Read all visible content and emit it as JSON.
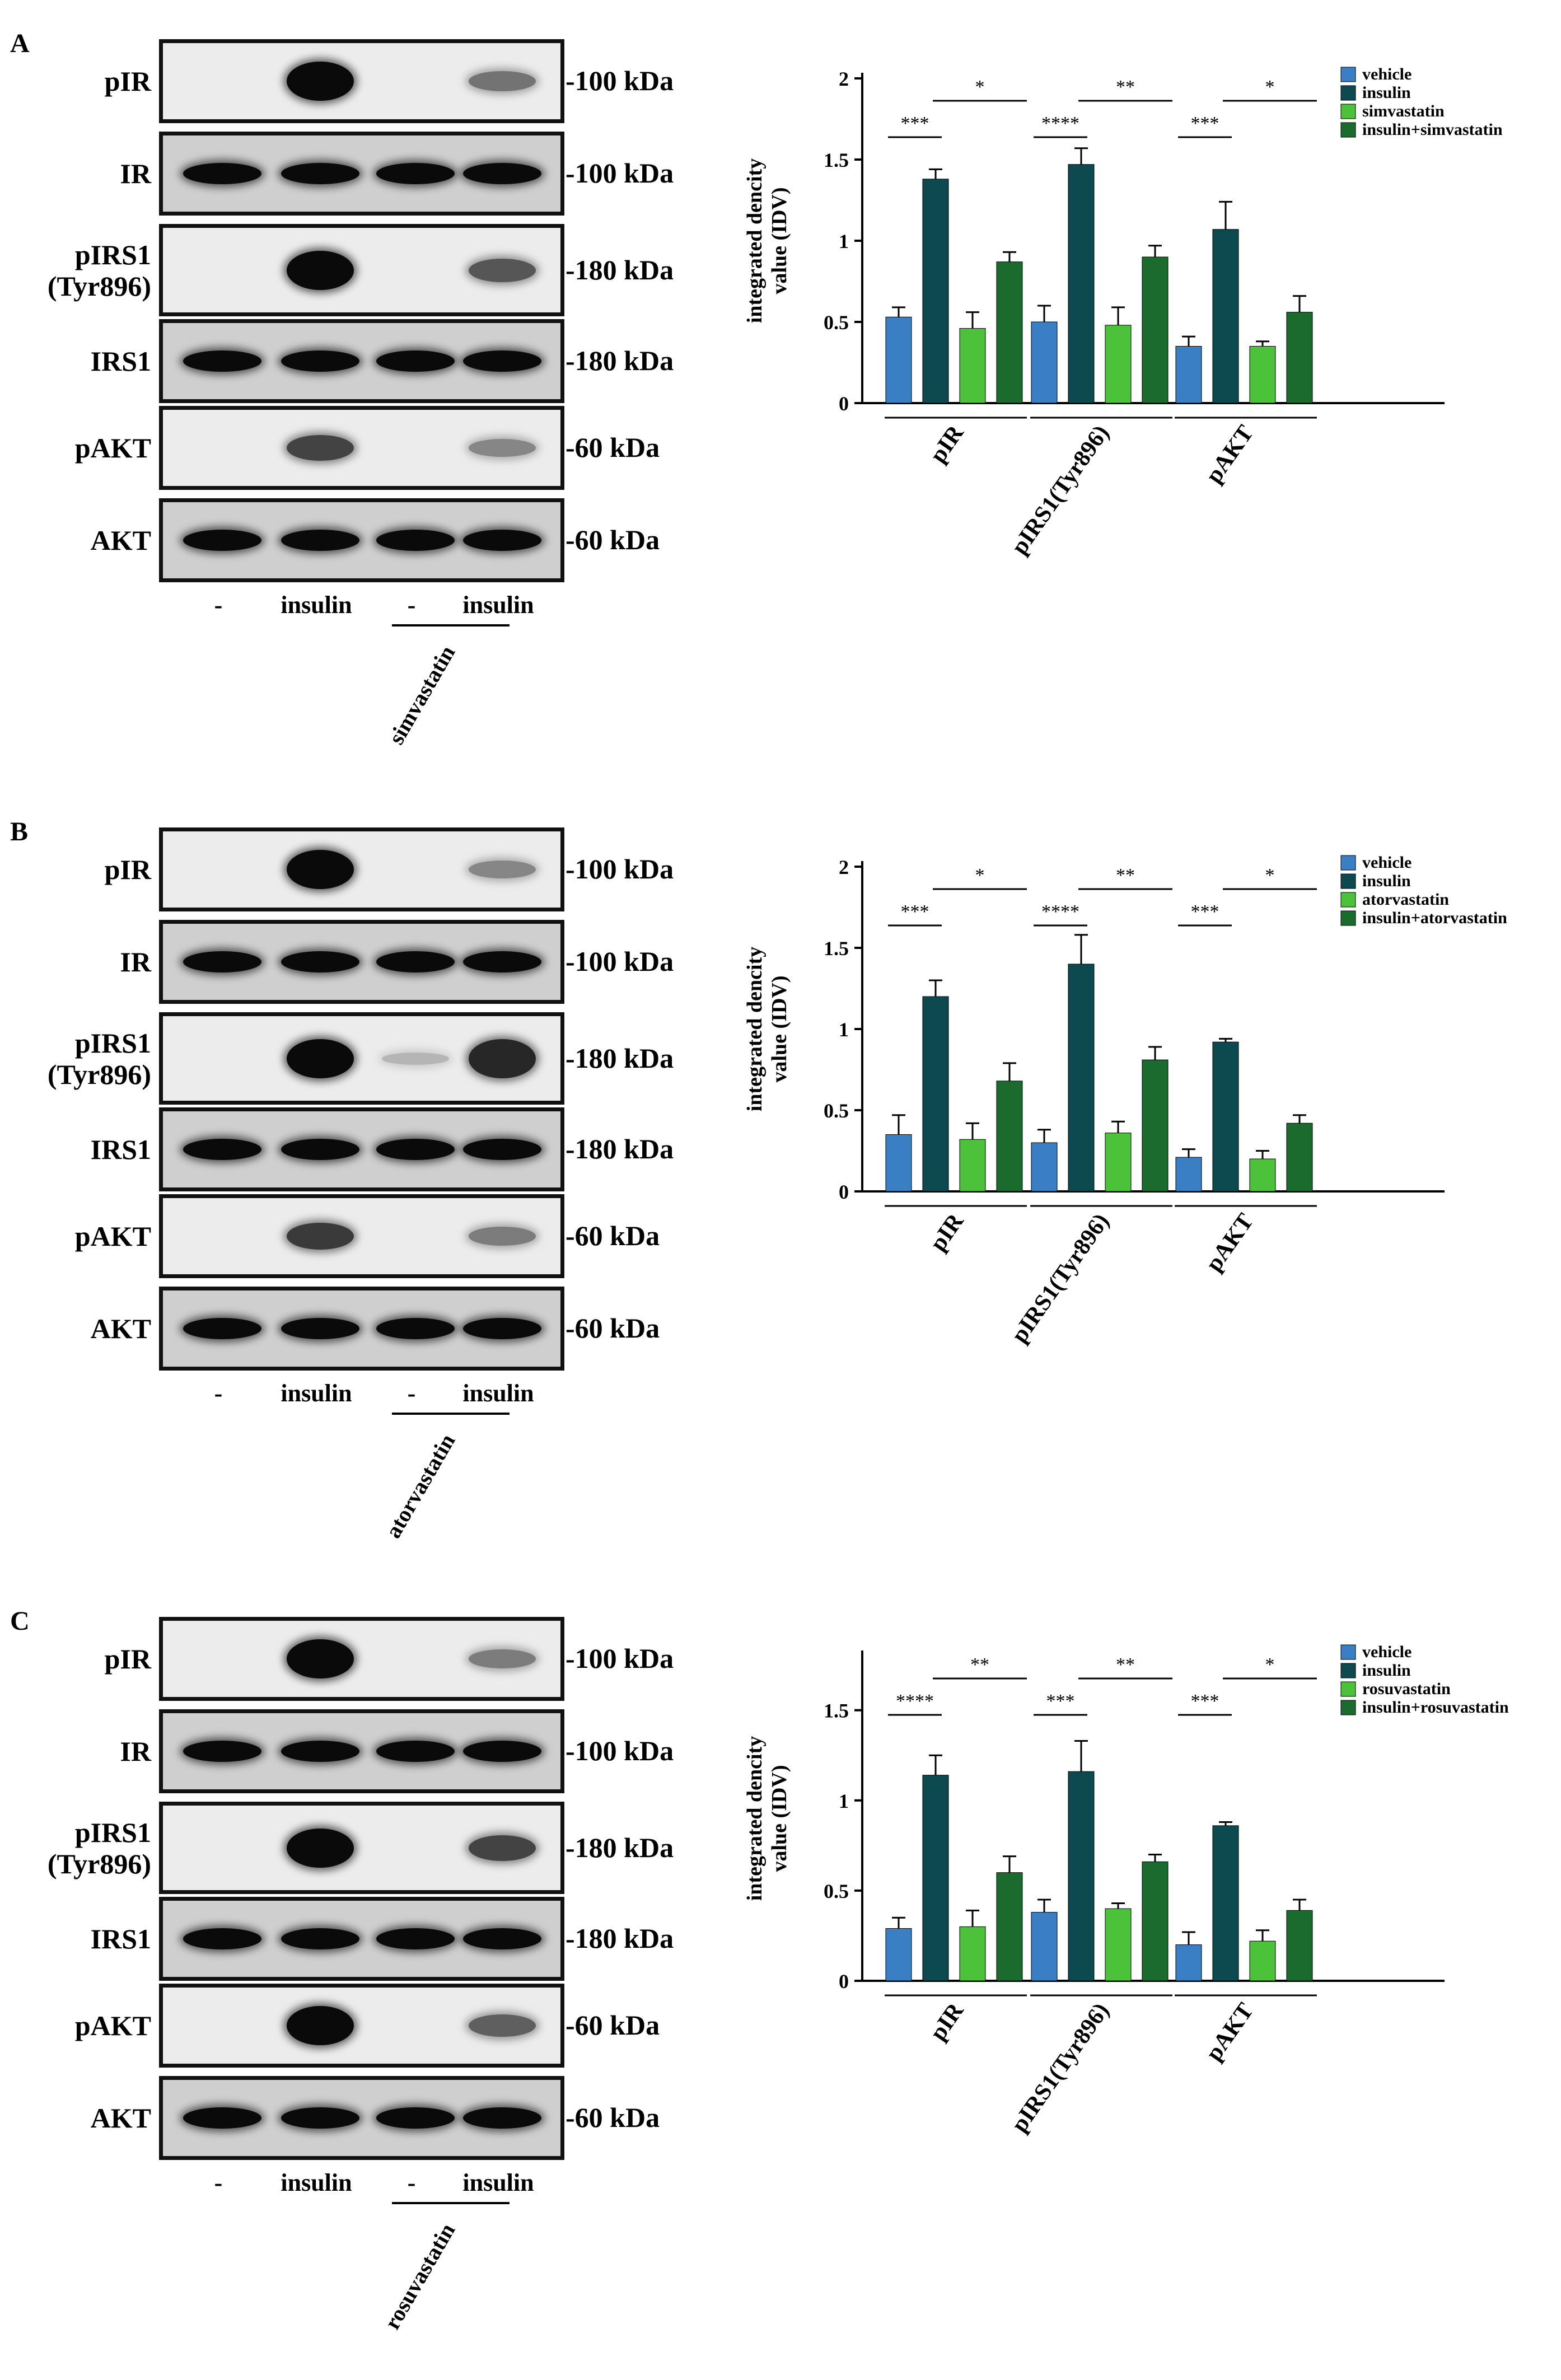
{
  "panels": [
    {
      "letter": "A",
      "drug": "simvastatin",
      "blots": [
        {
          "label": "pIR",
          "kda": "-100 kDa"
        },
        {
          "label": "IR",
          "kda": "-100 kDa"
        },
        {
          "label": "pIRS1\n(Tyr896)",
          "kda": "-180 kDa"
        },
        {
          "label": "IRS1",
          "kda": "-180 kDa"
        },
        {
          "label": "pAKT",
          "kda": "-60 kDa"
        },
        {
          "label": "AKT",
          "kda": "-60 kDa"
        }
      ],
      "lanes": [
        "-",
        "insulin",
        "-",
        "insulin"
      ]
    },
    {
      "letter": "B",
      "drug": "atorvastatin",
      "blots": [
        {
          "label": "pIR",
          "kda": "-100 kDa"
        },
        {
          "label": "IR",
          "kda": "-100 kDa"
        },
        {
          "label": "pIRS1\n(Tyr896)",
          "kda": "-180 kDa"
        },
        {
          "label": "IRS1",
          "kda": "-180 kDa"
        },
        {
          "label": "pAKT",
          "kda": "-60 kDa"
        },
        {
          "label": "AKT",
          "kda": "-60 kDa"
        }
      ],
      "lanes": [
        "-",
        "insulin",
        "-",
        "insulin"
      ]
    },
    {
      "letter": "C",
      "drug": "rosuvastatin",
      "blots": [
        {
          "label": "pIR",
          "kda": "-100 kDa"
        },
        {
          "label": "IR",
          "kda": "-100 kDa"
        },
        {
          "label": "pIRS1\n(Tyr896)",
          "kda": "-180 kDa"
        },
        {
          "label": "IRS1",
          "kda": "-180 kDa"
        },
        {
          "label": "pAKT",
          "kda": "-60 kDa"
        },
        {
          "label": "AKT",
          "kda": "-60 kDa"
        }
      ],
      "lanes": [
        "-",
        "insulin",
        "-",
        "insulin"
      ]
    }
  ],
  "band_intensity": [
    [
      [
        0,
        1,
        0,
        0.45
      ],
      [
        1,
        1,
        1,
        1
      ],
      [
        0,
        1,
        0,
        0.6
      ],
      [
        1,
        1,
        1,
        1
      ],
      [
        0,
        0.7,
        0,
        0.35
      ],
      [
        1,
        1,
        1,
        1
      ]
    ],
    [
      [
        0,
        1,
        0,
        0.35
      ],
      [
        1,
        1,
        1,
        1
      ],
      [
        0,
        1,
        0.1,
        0.85
      ],
      [
        1,
        1,
        1,
        1
      ],
      [
        0,
        0.75,
        0,
        0.4
      ],
      [
        1,
        1,
        1,
        1
      ]
    ],
    [
      [
        0,
        1,
        0,
        0.4
      ],
      [
        1,
        1,
        1,
        1
      ],
      [
        0,
        1,
        0,
        0.7
      ],
      [
        1,
        1,
        1,
        1
      ],
      [
        0,
        1,
        0,
        0.55
      ],
      [
        1,
        1,
        1,
        1
      ]
    ]
  ],
  "colors": {
    "vehicle": "#3a7fc4",
    "insulin": "#0d4a4f",
    "statin": "#4cc13a",
    "insulin_statin": "#1c6b2e"
  },
  "chart_data": [
    {
      "type": "bar",
      "ylabel": "integrated dencity\nvalue (IDV)",
      "categories": [
        "pIR",
        "pIRS1(Tyr896)",
        "pAKT"
      ],
      "ylim": [
        0,
        2
      ],
      "yticks": [
        "0",
        "0.5",
        "1",
        "1.5",
        "2"
      ],
      "ytick_values": [
        0,
        0.5,
        1,
        1.5,
        2
      ],
      "series": [
        {
          "name": "vehicle",
          "values": [
            0.53,
            0.5,
            0.35
          ],
          "errors": [
            0.06,
            0.1,
            0.06
          ]
        },
        {
          "name": "insulin",
          "values": [
            1.38,
            1.47,
            1.07
          ],
          "errors": [
            0.06,
            0.1,
            0.17
          ]
        },
        {
          "name": "simvastatin",
          "values": [
            0.46,
            0.48,
            0.35
          ],
          "errors": [
            0.1,
            0.11,
            0.03
          ]
        },
        {
          "name": "insulin+simvastatin",
          "values": [
            0.87,
            0.9,
            0.56
          ],
          "errors": [
            0.06,
            0.07,
            0.1
          ]
        }
      ],
      "significance": [
        {
          "low": "***",
          "high": "*"
        },
        {
          "low": "****",
          "high": "**"
        },
        {
          "low": "***",
          "high": "*"
        }
      ]
    },
    {
      "type": "bar",
      "ylabel": "integrated dencity\nvalue (IDV)",
      "categories": [
        "pIR",
        "pIRS1(Tyr896)",
        "pAKT"
      ],
      "ylim": [
        0,
        2
      ],
      "yticks": [
        "0",
        "0.5",
        "1",
        "1.5",
        "2"
      ],
      "ytick_values": [
        0,
        0.5,
        1,
        1.5,
        2
      ],
      "series": [
        {
          "name": "vehicle",
          "values": [
            0.35,
            0.3,
            0.21
          ],
          "errors": [
            0.12,
            0.08,
            0.05
          ]
        },
        {
          "name": "insulin",
          "values": [
            1.2,
            1.4,
            0.92
          ],
          "errors": [
            0.1,
            0.18,
            0.02
          ]
        },
        {
          "name": "atorvastatin",
          "values": [
            0.32,
            0.36,
            0.2
          ],
          "errors": [
            0.1,
            0.07,
            0.05
          ]
        },
        {
          "name": "insulin+atorvastatin",
          "values": [
            0.68,
            0.81,
            0.42
          ],
          "errors": [
            0.11,
            0.08,
            0.05
          ]
        }
      ],
      "significance": [
        {
          "low": "***",
          "high": "*"
        },
        {
          "low": "****",
          "high": "**"
        },
        {
          "low": "***",
          "high": "*"
        }
      ]
    },
    {
      "type": "bar",
      "ylabel": "integrated dencity\nvalue (IDV)",
      "categories": [
        "pIR",
        "pIRS1(Tyr896)",
        "pAKT"
      ],
      "ylim": [
        0,
        1.8
      ],
      "yticks": [
        "0",
        "0.5",
        "1",
        "1.5"
      ],
      "ytick_values": [
        0,
        0.5,
        1,
        1.5
      ],
      "series": [
        {
          "name": "vehicle",
          "values": [
            0.29,
            0.38,
            0.2
          ],
          "errors": [
            0.06,
            0.07,
            0.07
          ]
        },
        {
          "name": "insulin",
          "values": [
            1.14,
            1.16,
            0.86
          ],
          "errors": [
            0.11,
            0.17,
            0.02
          ]
        },
        {
          "name": "rosuvastatin",
          "values": [
            0.3,
            0.4,
            0.22
          ],
          "errors": [
            0.09,
            0.03,
            0.06
          ]
        },
        {
          "name": "insulin+rosuvastatin",
          "values": [
            0.6,
            0.66,
            0.39
          ],
          "errors": [
            0.09,
            0.04,
            0.06
          ]
        }
      ],
      "significance": [
        {
          "low": "****",
          "high": "**"
        },
        {
          "low": "***",
          "high": "**"
        },
        {
          "low": "***",
          "high": "*"
        }
      ]
    }
  ]
}
